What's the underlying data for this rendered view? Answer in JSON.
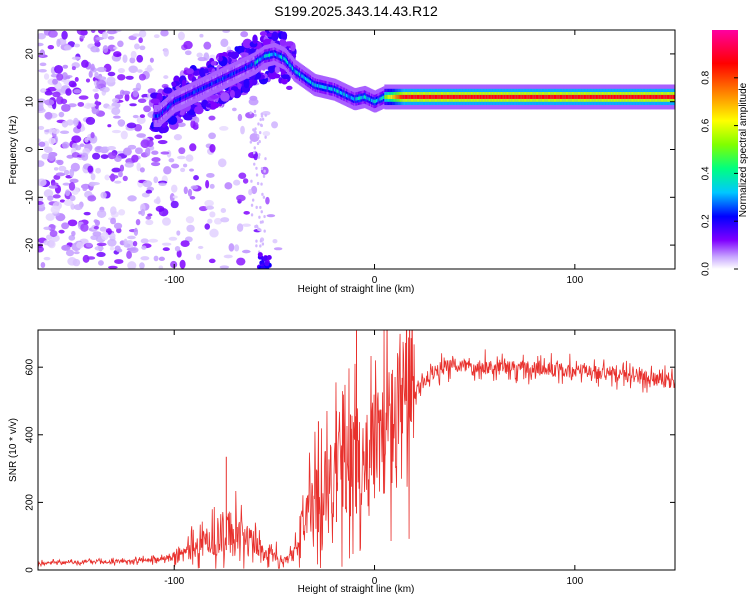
{
  "title": "S199.2025.343.14.43.R12",
  "chart_data": [
    {
      "type": "heatmap",
      "xlabel": "Height of straight line (km)",
      "ylabel": "Frequency (Hz)",
      "xlim": [
        -168,
        150
      ],
      "ylim": [
        -25,
        25
      ],
      "x_ticks": [
        -100,
        0,
        100
      ],
      "y_ticks": [
        -20,
        -10,
        0,
        10,
        20
      ],
      "colorbar": {
        "label": "Normalized spectral amplitude",
        "range": [
          0,
          1
        ],
        "ticks": [
          0.0,
          0.2,
          0.4,
          0.6,
          0.8
        ],
        "colors": [
          "#ffffff",
          "#c8a8ff",
          "#8000ff",
          "#0000ff",
          "#00c8ff",
          "#00ff80",
          "#80ff00",
          "#ffff00",
          "#ff8000",
          "#ff0000",
          "#ff00a0"
        ]
      },
      "ridge": {
        "x": [
          -108,
          -100,
          -90,
          -80,
          -70,
          -60,
          -55,
          -50,
          -45,
          -40,
          -35,
          -30,
          -25,
          -20,
          -15,
          -10,
          -5,
          0,
          5,
          10,
          20,
          40,
          60,
          80,
          100,
          120,
          150
        ],
        "y": [
          7,
          10,
          12,
          14,
          16,
          18,
          19.5,
          20,
          19,
          16.5,
          15,
          13.5,
          13,
          12.5,
          11.5,
          10.5,
          11,
          10,
          11,
          11,
          11,
          11,
          11,
          11,
          11,
          11,
          11
        ]
      }
    },
    {
      "type": "line",
      "xlabel": "Height of straight line (km)",
      "ylabel": "SNR (10 * v/v)",
      "xlim": [
        -168,
        150
      ],
      "ylim": [
        0,
        710
      ],
      "x_ticks": [
        -100,
        0,
        100
      ],
      "y_ticks": [
        0,
        200,
        400,
        600
      ],
      "color": "#e8302c",
      "envelope": {
        "x": [
          -168,
          -130,
          -110,
          -100,
          -90,
          -85,
          -80,
          -75,
          -70,
          -65,
          -60,
          -55,
          -50,
          -45,
          -40,
          -35,
          -30,
          -25,
          -20,
          -15,
          -10,
          -5,
          0,
          5,
          10,
          15,
          20,
          25,
          30,
          40,
          50,
          60,
          80,
          100,
          120,
          140,
          150
        ],
        "y": [
          20,
          25,
          30,
          40,
          60,
          80,
          90,
          120,
          110,
          90,
          80,
          50,
          40,
          30,
          45,
          150,
          200,
          260,
          280,
          300,
          330,
          350,
          360,
          400,
          440,
          480,
          520,
          560,
          590,
          605,
          605,
          600,
          595,
          590,
          580,
          565,
          555
        ]
      },
      "spikes": [
        {
          "x": -74,
          "y": 335
        },
        {
          "x": -12,
          "y": 460
        },
        {
          "x": -9,
          "y": 708
        },
        {
          "x": -28,
          "y": 440
        },
        {
          "x": -19,
          "y": 470
        }
      ]
    }
  ]
}
